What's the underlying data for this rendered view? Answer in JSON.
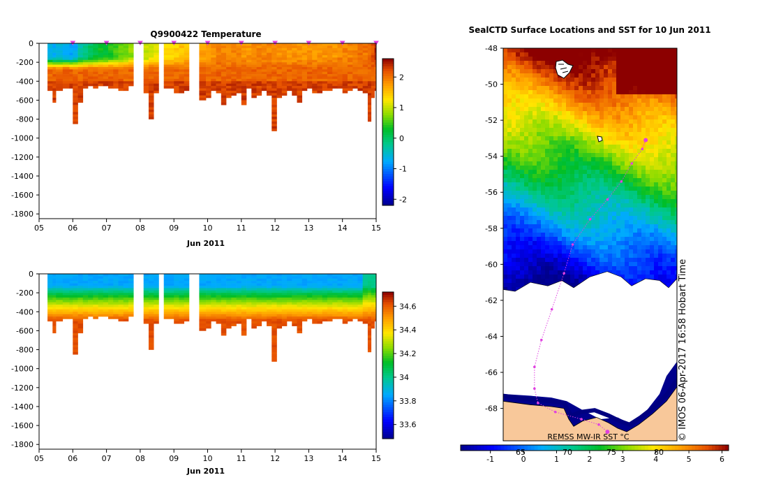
{
  "chart_data": [
    {
      "type": "heatmap",
      "title": "Q9900422  Temperature",
      "xlabel": "Jun 2011",
      "x_ticks": [
        "05",
        "06",
        "07",
        "08",
        "09",
        "10",
        "11",
        "12",
        "13",
        "14",
        "15"
      ],
      "x_range": [
        5,
        15
      ],
      "y_ticks": [
        "0",
        "-200",
        "-400",
        "-600",
        "-800",
        "-1000",
        "-1200",
        "-1400",
        "-1600",
        "-1800"
      ],
      "ylim": [
        -1850,
        0
      ],
      "colorbar": {
        "ticks": [
          "-2",
          "-1",
          "0",
          "1",
          "2"
        ],
        "range": [
          -2.2,
          2.6
        ]
      },
      "surface_markers_day": [
        6,
        7,
        8,
        9,
        10,
        11,
        12,
        13,
        14,
        15
      ],
      "profiles": {
        "day": [
          5.25,
          5.4,
          5.5,
          5.7,
          5.9,
          6.0,
          6.15,
          6.3,
          6.45,
          6.6,
          6.75,
          6.9,
          7.05,
          7.2,
          7.35,
          7.5,
          7.65,
          7.8,
          8.1,
          8.25,
          8.4,
          8.55,
          8.7,
          9.0,
          9.15,
          9.3,
          9.45,
          9.75,
          9.95,
          10.1,
          10.25,
          10.4,
          10.55,
          10.7,
          10.85,
          11.0,
          11.15,
          11.3,
          11.45,
          11.6,
          11.75,
          11.9,
          12.05,
          12.2,
          12.35,
          12.5,
          12.65,
          12.8,
          12.95,
          13.1,
          13.25,
          13.4,
          13.55,
          13.7,
          13.85,
          14.0,
          14.15,
          14.3,
          14.45,
          14.6,
          14.75,
          14.85,
          14.95
        ],
        "max_depth": [
          480,
          620,
          500,
          460,
          470,
          830,
          610,
          470,
          440,
          460,
          430,
          450,
          470,
          460,
          490,
          480,
          450,
          480,
          520,
          800,
          520,
          540,
          460,
          520,
          510,
          500,
          470,
          600,
          560,
          480,
          520,
          640,
          560,
          540,
          510,
          640,
          470,
          560,
          540,
          500,
          530,
          920,
          560,
          540,
          480,
          530,
          610,
          490,
          470,
          510,
          520,
          490,
          480,
          470,
          460,
          510,
          480,
          470,
          490,
          520,
          820,
          560,
          480
        ],
        "surface_temp": [
          -0.6,
          -0.7,
          -0.6,
          -0.7,
          -0.8,
          -0.7,
          -0.3,
          -0.2,
          0.0,
          0.2,
          0.3,
          0.3,
          0.4,
          0.5,
          0.6,
          0.7,
          0.8,
          0.9,
          1.0,
          1.1,
          1.2,
          1.2,
          1.3,
          1.4,
          1.5,
          1.5,
          1.6,
          1.7,
          1.8,
          1.8,
          1.9,
          1.9,
          1.9,
          1.9,
          1.9,
          1.8,
          1.8,
          1.9,
          1.9,
          1.9,
          1.9,
          1.8,
          1.8,
          1.8,
          1.8,
          1.8,
          1.8,
          1.8,
          1.8,
          1.8,
          1.8,
          1.8,
          1.8,
          1.8,
          1.9,
          1.9,
          1.9,
          1.9,
          2.0,
          2.0,
          2.1,
          2.2,
          2.4
        ],
        "deep_temp": 2.1
      }
    },
    {
      "type": "heatmap",
      "title": "",
      "xlabel": "Jun 2011",
      "x_ticks": [
        "05",
        "06",
        "07",
        "08",
        "09",
        "10",
        "11",
        "12",
        "13",
        "14",
        "15"
      ],
      "x_range": [
        5,
        15
      ],
      "y_ticks": [
        "0",
        "-200",
        "-400",
        "-600",
        "-800",
        "-1000",
        "-1200",
        "-1400",
        "-1600",
        "-1800"
      ],
      "ylim": [
        -1850,
        0
      ],
      "colorbar": {
        "ticks": [
          "33.6",
          "33.8",
          "34",
          "34.2",
          "34.4",
          "34.6"
        ],
        "range": [
          33.48,
          34.72
        ]
      },
      "surface_salinity": 33.85,
      "deep_salinity": 34.62
    },
    {
      "type": "heatmap",
      "title": "SealCTD Surface Locations and SST for 10 Jun 2011",
      "y_ticks": [
        "-48",
        "-50",
        "-52",
        "-54",
        "-56",
        "-58",
        "-60",
        "-62",
        "-64",
        "-66",
        "-68"
      ],
      "ylim": [
        -69.8,
        -48
      ],
      "colorbar": {
        "ticks": [
          "-1",
          "0",
          "1",
          "2",
          "3",
          "4",
          "5",
          "6"
        ],
        "range": [
          -1.9,
          6.2
        ]
      },
      "colorbar_overlay_labels": [
        "65",
        "70",
        "75",
        "80"
      ],
      "track": [
        [
          0.82,
          -53.1
        ],
        [
          0.8,
          -53.6
        ],
        [
          0.74,
          -54.4
        ],
        [
          0.68,
          -55.4
        ],
        [
          0.6,
          -56.4
        ],
        [
          0.5,
          -57.5
        ],
        [
          0.4,
          -58.9
        ],
        [
          0.35,
          -60.5
        ],
        [
          0.28,
          -62.5
        ],
        [
          0.22,
          -64.2
        ],
        [
          0.18,
          -65.7
        ],
        [
          0.18,
          -66.9
        ],
        [
          0.2,
          -67.7
        ],
        [
          0.3,
          -68.2
        ],
        [
          0.45,
          -68.6
        ],
        [
          0.55,
          -68.9
        ],
        [
          0.6,
          -69.3
        ]
      ],
      "labels": {
        "source": "REMSS MW-IR SST °C",
        "credit": "© IMOS 06-Apr-2017 16:58 Hobart Time"
      }
    }
  ]
}
